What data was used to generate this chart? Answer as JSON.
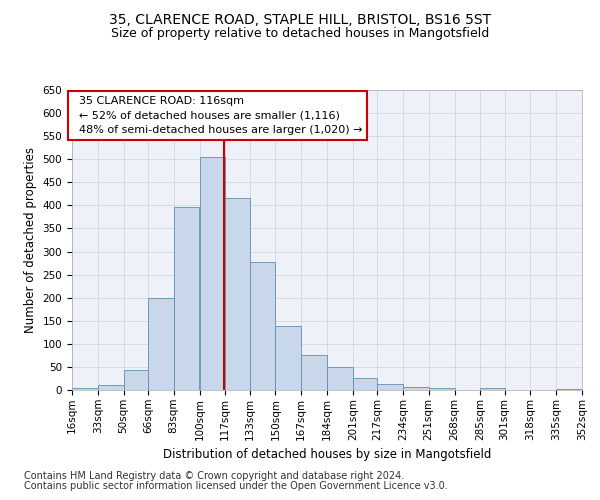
{
  "title_line1": "35, CLARENCE ROAD, STAPLE HILL, BRISTOL, BS16 5ST",
  "title_line2": "Size of property relative to detached houses in Mangotsfield",
  "xlabel": "Distribution of detached houses by size in Mangotsfield",
  "ylabel": "Number of detached properties",
  "bar_color": "#c8d8ea",
  "bar_edge_color": "#6090b0",
  "bins": [
    16,
    33,
    50,
    66,
    83,
    100,
    117,
    133,
    150,
    167,
    184,
    201,
    217,
    234,
    251,
    268,
    285,
    301,
    318,
    335,
    352
  ],
  "bin_labels": [
    "16sqm",
    "33sqm",
    "50sqm",
    "66sqm",
    "83sqm",
    "100sqm",
    "117sqm",
    "133sqm",
    "150sqm",
    "167sqm",
    "184sqm",
    "201sqm",
    "217sqm",
    "234sqm",
    "251sqm",
    "268sqm",
    "285sqm",
    "301sqm",
    "318sqm",
    "335sqm",
    "352sqm"
  ],
  "counts": [
    5,
    10,
    43,
    200,
    397,
    505,
    417,
    277,
    138,
    75,
    50,
    25,
    12,
    6,
    4,
    0,
    5,
    0,
    0,
    3
  ],
  "property_line_x": 116,
  "ylim": [
    0,
    650
  ],
  "yticks": [
    0,
    50,
    100,
    150,
    200,
    250,
    300,
    350,
    400,
    450,
    500,
    550,
    600,
    650
  ],
  "annotation_text": "  35 CLARENCE ROAD: 116sqm\n  ← 52% of detached houses are smaller (1,116)\n  48% of semi-detached houses are larger (1,020) →",
  "annotation_box_color": "#ffffff",
  "annotation_box_edge": "#cc0000",
  "footnote1": "Contains HM Land Registry data © Crown copyright and database right 2024.",
  "footnote2": "Contains public sector information licensed under the Open Government Licence v3.0.",
  "grid_color": "#ccd8e8",
  "background_color": "#eef2f8",
  "title_fontsize": 10,
  "subtitle_fontsize": 9,
  "axis_label_fontsize": 8.5,
  "tick_fontsize": 7.5,
  "annotation_fontsize": 8,
  "footnote_fontsize": 7,
  "line_color": "#cc0000"
}
